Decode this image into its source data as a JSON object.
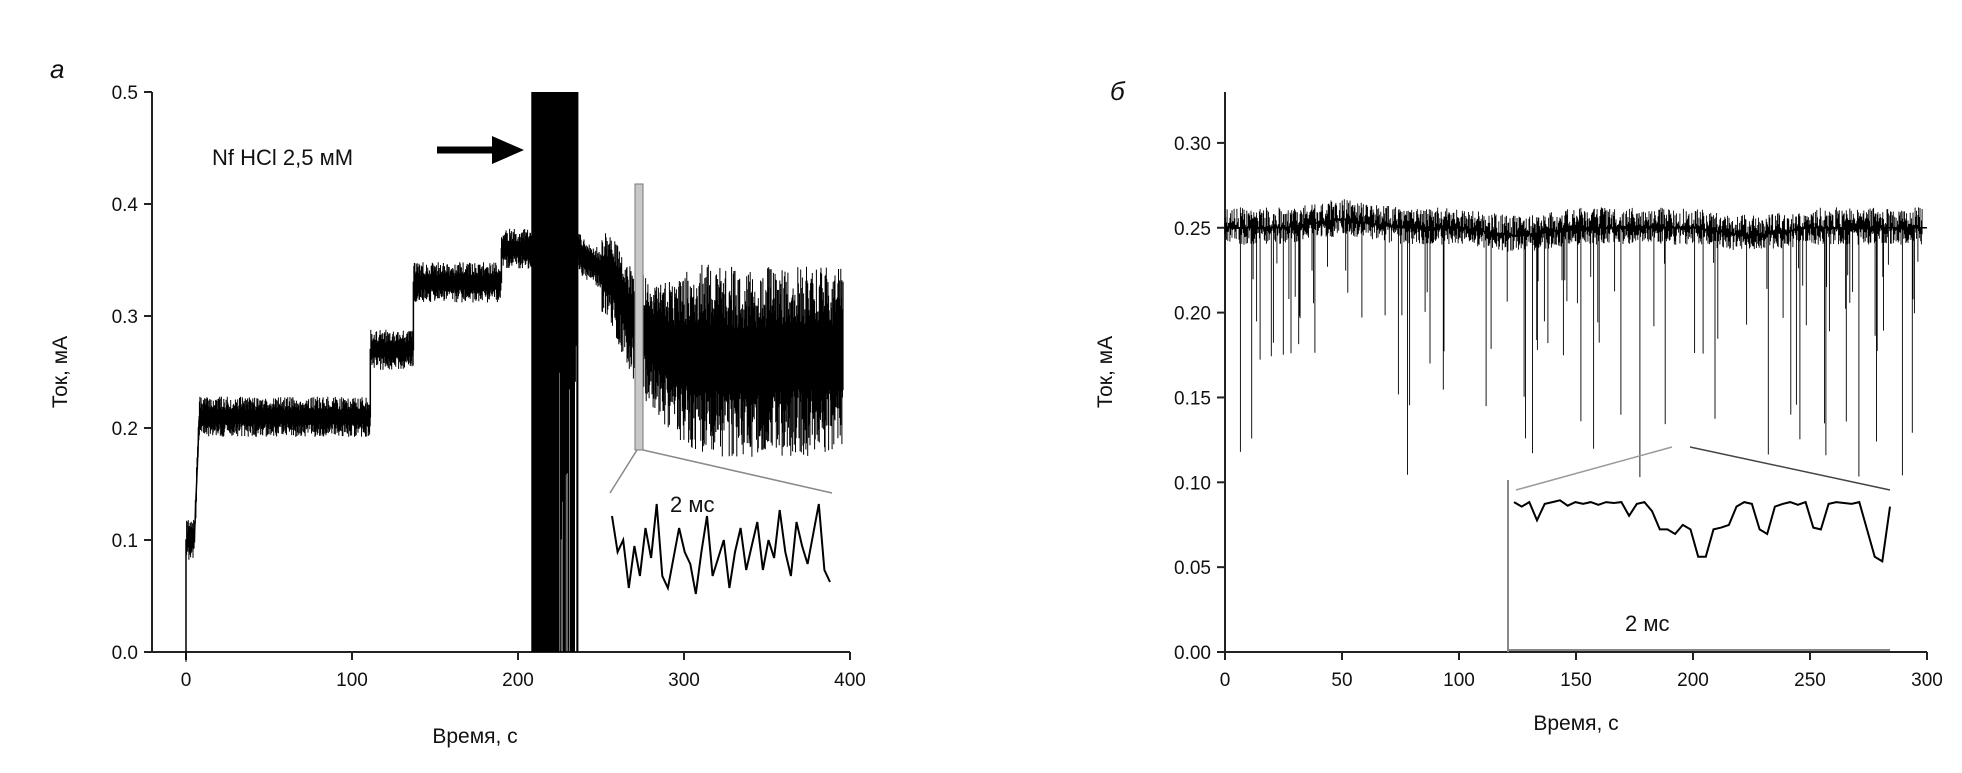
{
  "chart_data": [
    {
      "panel": "а",
      "type": "line",
      "xlabel": "Время, с",
      "ylabel": "Ток, мА",
      "xlim": [
        -20,
        400
      ],
      "ylim": [
        0.0,
        0.5
      ],
      "xticks": [
        "0",
        "100",
        "200",
        "300",
        "400"
      ],
      "yticks": [
        "0.0",
        "0.1",
        "0.2",
        "0.3",
        "0.4",
        "0.5"
      ],
      "grid": false,
      "annotation": "Nf HCl 2,5 мМ",
      "inset_label": "2 мс",
      "series": [
        {
          "x": [
            0,
            0,
            2,
            5,
            5,
            8,
            8,
            40,
            80,
            111,
            111,
            120,
            130,
            137,
            137,
            160,
            180,
            190,
            190,
            200,
            208,
            215,
            222,
            228,
            232,
            236,
            240,
            246,
            252,
            258,
            264,
            268,
            274,
            280,
            290,
            300,
            320,
            340,
            360,
            380,
            396
          ],
          "y": [
            0.0,
            0.1,
            0.1,
            0.1,
            0.1,
            0.21,
            0.21,
            0.21,
            0.21,
            0.21,
            0.27,
            0.27,
            0.27,
            0.27,
            0.33,
            0.33,
            0.33,
            0.33,
            0.36,
            0.36,
            0.36,
            0.36,
            0.36,
            0.365,
            0.365,
            0.36,
            0.35,
            0.345,
            0.34,
            0.33,
            0.31,
            0.3,
            0.29,
            0.28,
            0.27,
            0.265,
            0.265,
            0.26,
            0.265,
            0.265,
            0.265
          ]
        }
      ],
      "inset": {
        "x": [
          0,
          1,
          2,
          3,
          4,
          5,
          6,
          7,
          8,
          9,
          10,
          11,
          12,
          13,
          14,
          15,
          16,
          17,
          18,
          19,
          20,
          21,
          22,
          23,
          24,
          25,
          26,
          27,
          28,
          29,
          30,
          31,
          32,
          33,
          34,
          35,
          36,
          37,
          38,
          39
        ],
        "y": [
          0.8,
          0.5,
          0.6,
          0.2,
          0.55,
          0.3,
          0.7,
          0.45,
          0.9,
          0.3,
          0.2,
          0.45,
          0.7,
          0.5,
          0.4,
          0.15,
          0.5,
          0.8,
          0.3,
          0.45,
          0.6,
          0.2,
          0.5,
          0.7,
          0.35,
          0.55,
          0.75,
          0.35,
          0.6,
          0.45,
          0.85,
          0.5,
          0.3,
          0.75,
          0.55,
          0.4,
          0.65,
          0.9,
          0.35,
          0.25
        ]
      }
    },
    {
      "panel": "б",
      "type": "line",
      "xlabel": "Время, с",
      "ylabel": "Ток, мА",
      "xlim": [
        0,
        300
      ],
      "ylim": [
        0.0,
        0.33
      ],
      "xticks": [
        "0",
        "50",
        "100",
        "150",
        "200",
        "250",
        "300"
      ],
      "yticks": [
        "0.00",
        "0.05",
        "0.10",
        "0.15",
        "0.20",
        "0.25",
        "0.30"
      ],
      "grid": false,
      "inset_label": "2 мс",
      "series": [
        {
          "x": [
            0,
            25,
            50,
            75,
            100,
            125,
            150,
            175,
            200,
            225,
            250,
            275,
            300
          ],
          "y": [
            0.25,
            0.25,
            0.255,
            0.25,
            0.25,
            0.245,
            0.25,
            0.25,
            0.25,
            0.245,
            0.25,
            0.25,
            0.25
          ]
        }
      ],
      "inset": {
        "x": [
          0,
          1,
          2,
          3,
          4,
          5,
          6,
          7,
          8,
          9,
          10,
          11,
          12,
          13,
          14,
          15,
          16,
          17,
          18,
          19,
          20,
          21,
          22,
          23,
          24,
          25,
          26,
          27,
          28,
          29,
          30,
          31,
          32,
          33,
          34,
          35,
          36,
          37,
          38,
          39,
          40,
          41,
          42,
          43,
          44,
          45,
          46,
          47,
          48,
          49
        ],
        "y": [
          0.9,
          0.85,
          0.9,
          0.7,
          0.88,
          0.9,
          0.92,
          0.86,
          0.9,
          0.88,
          0.9,
          0.87,
          0.9,
          0.89,
          0.9,
          0.75,
          0.88,
          0.9,
          0.8,
          0.6,
          0.6,
          0.55,
          0.65,
          0.6,
          0.3,
          0.3,
          0.6,
          0.62,
          0.65,
          0.85,
          0.9,
          0.88,
          0.6,
          0.55,
          0.85,
          0.88,
          0.9,
          0.87,
          0.9,
          0.62,
          0.6,
          0.88,
          0.9,
          0.89,
          0.88,
          0.9,
          0.6,
          0.3,
          0.25,
          0.85
        ]
      }
    }
  ]
}
